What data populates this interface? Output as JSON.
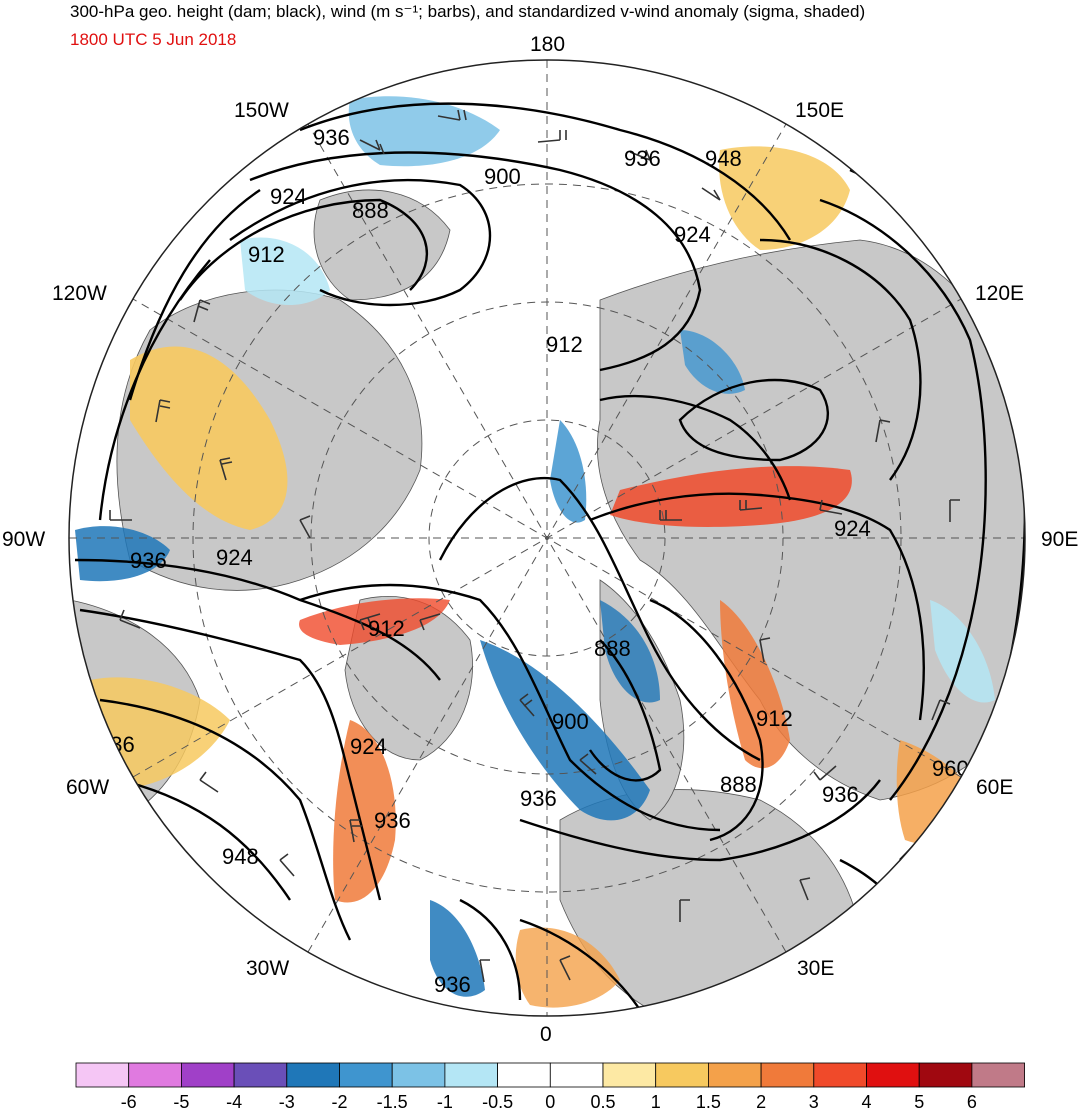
{
  "header": {
    "title": "300-hPa geo. height (dam; black), wind (m s⁻¹; barbs), and standardized v-wind anomaly (sigma, shaded)",
    "valid_time": "1800 UTC 5 Jun 2018",
    "valid_time_color": "#e01010"
  },
  "map": {
    "projection": "north-polar-stereographic",
    "longitude_labels": [
      "180",
      "150E",
      "120E",
      "90E",
      "60E",
      "30E",
      "0",
      "30W",
      "60W",
      "90W",
      "120W",
      "150W"
    ],
    "contour_labels": [
      "936",
      "948",
      "936",
      "924",
      "900",
      "888",
      "924",
      "912",
      "912",
      "924",
      "936",
      "924",
      "912",
      "888",
      "900",
      "912",
      "888",
      "936",
      "936",
      "924",
      "936",
      "948",
      "936",
      "960",
      "936"
    ]
  },
  "colorbar": {
    "colors": [
      "#f5c6f5",
      "#e07ae0",
      "#a040c8",
      "#6a4fb8",
      "#1f77b8",
      "#3f95cf",
      "#7cc2e6",
      "#b4e6f5",
      "#ffffff",
      "#ffffff",
      "#fde9a4",
      "#f7c95f",
      "#f4a14a",
      "#f07a3a",
      "#f04a2a",
      "#e01010",
      "#a00810",
      "#c07a88"
    ],
    "tick_labels": [
      "-6",
      "-5",
      "-4",
      "-3",
      "-2",
      "-1.5",
      "-1",
      "-0.5",
      "0",
      "0.5",
      "1",
      "1.5",
      "2",
      "3",
      "4",
      "5",
      "6"
    ]
  },
  "palette": {
    "land": "#c8c8c8",
    "ocean": "#ffffff",
    "contour": "#000000",
    "barb": "#333333"
  }
}
